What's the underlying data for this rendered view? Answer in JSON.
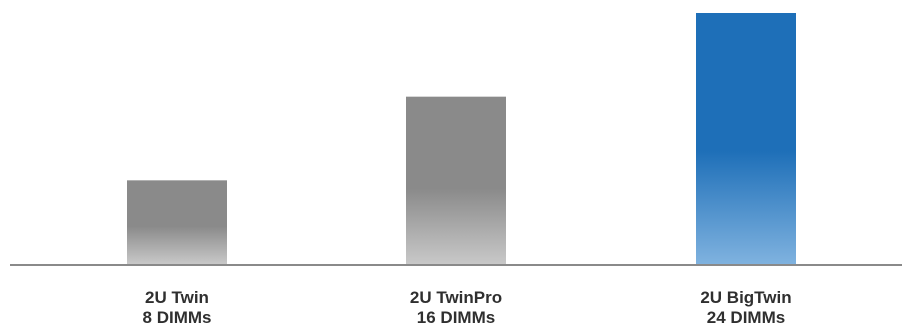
{
  "chart_data": {
    "type": "bar",
    "categories": [
      {
        "line1": "2U Twin",
        "line2": "8 DIMMs"
      },
      {
        "line1": "2U TwinPro",
        "line2": "16 DIMMs"
      },
      {
        "line1": "2U BigTwin",
        "line2": "24 DIMMs"
      }
    ],
    "values": [
      8,
      16,
      24
    ],
    "ylim": [
      0,
      24
    ],
    "grid": false,
    "legend": "none",
    "colors": {
      "gray_top": "#8a8a8a",
      "gray_bottom": "#c8c8c8",
      "blue_top": "#1e6fb8",
      "blue_bottom": "#7fb2df",
      "axis": "#8a8a8a"
    },
    "highlight_index": 2
  }
}
